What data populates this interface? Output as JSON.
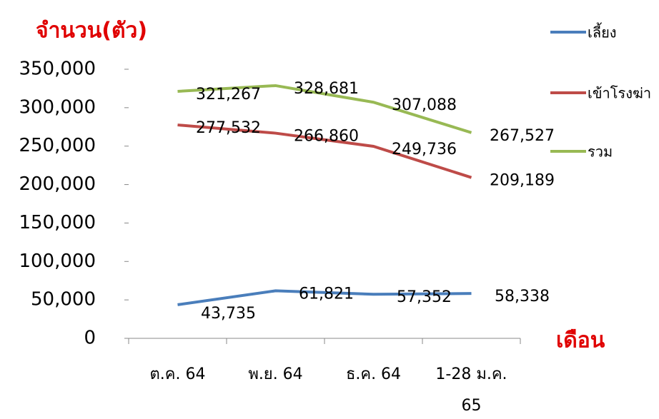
{
  "chart_data": {
    "type": "line",
    "title": "จำนวน(ตัว)",
    "x_label": "เดือน",
    "categories": [
      "ต.ค. 64",
      "พ.ย. 64",
      "ธ.ค. 64",
      "1-28 ม.ค. 65"
    ],
    "series": [
      {
        "name": "เลี้ยง",
        "color": "#4a7ebb",
        "values": [
          43735,
          61821,
          57352,
          58338
        ],
        "value_labels": [
          "43,735",
          "61,821",
          "57,352",
          "58,338"
        ]
      },
      {
        "name": "เข้าโรงฆ่า",
        "color": "#be4b48",
        "values": [
          277532,
          266860,
          249736,
          209189
        ],
        "value_labels": [
          "277,532",
          "266,860",
          "249,736",
          "209,189"
        ]
      },
      {
        "name": "รวม",
        "color": "#98b954",
        "values": [
          321267,
          328681,
          307088,
          267527
        ],
        "value_labels": [
          "321,267",
          "328,681",
          "307,088",
          "267,527"
        ]
      }
    ],
    "ylim": [
      0,
      350000
    ],
    "yticks": [
      0,
      {
        "value": 50000,
        "label": "50,000"
      },
      {
        "value": 100000,
        "label": "100,000"
      },
      {
        "value": 150000,
        "label": "150,000"
      },
      {
        "value": 200000,
        "label": "200,000"
      },
      {
        "value": 250000,
        "label": "250,000"
      },
      {
        "value": 300000,
        "label": "300,000"
      },
      {
        "value": 350000,
        "label": "350,000"
      }
    ],
    "legend": "right"
  }
}
